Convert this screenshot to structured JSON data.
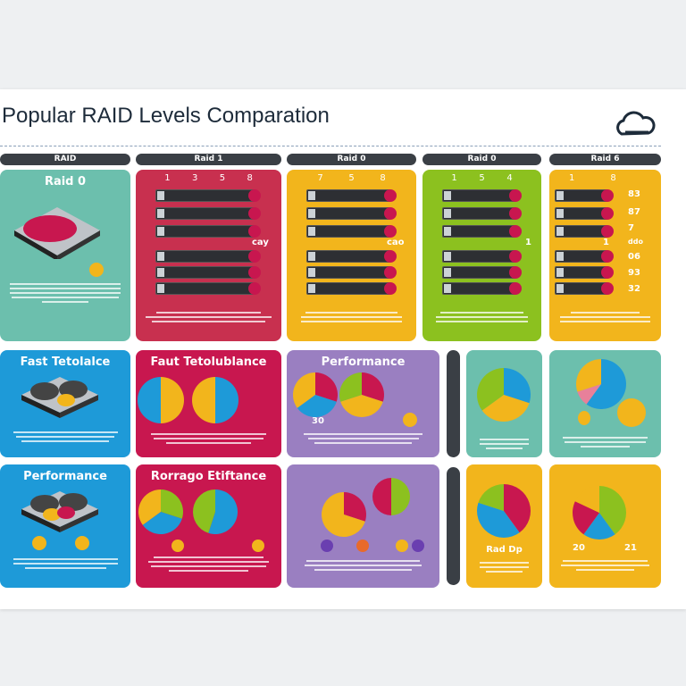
{
  "title": "Popular RAID Levels  Comparation",
  "icons": {
    "header": "cloud-icon"
  },
  "columns": [
    {
      "label": "RAID"
    },
    {
      "label": "Raid 1"
    },
    {
      "label": "Raid 0"
    },
    {
      "label": "Raid 0"
    },
    {
      "label": "Raid 6"
    }
  ],
  "colors": {
    "teal": "#6cbfad",
    "crimson": "#c8174f",
    "yellow": "#f2b51c",
    "green": "#8cc11f",
    "blue": "#1e9ad8",
    "purple": "#9a7fc1",
    "dark": "#3a3f45"
  },
  "row1": {
    "raid0_title": "Raid 0",
    "raid1_numbers": [
      "1",
      "3",
      "5",
      "8"
    ],
    "raid1_tag": "cay",
    "raid0b_numbers": [
      "7",
      "5",
      "8"
    ],
    "raid0b_tag": "cao",
    "raid0c_numbers": [
      "1",
      "5",
      "4"
    ],
    "raid0c_tag": "1",
    "raid6_numbers": [
      "1",
      "8"
    ],
    "raid6_tag": "1",
    "raid6_values": [
      "83",
      "87",
      "7",
      "ddo",
      "06",
      "93",
      "32"
    ]
  },
  "row2": {
    "c1": "Fast Tetolalce",
    "c2": "Faut Tetolublance",
    "c3": "Performance",
    "c3_label": "30"
  },
  "row3": {
    "c1": "Performance",
    "c2": "Rorrago Etiftance",
    "c4_label": "Rad Dp",
    "c5_labels": [
      "20",
      "21"
    ]
  }
}
